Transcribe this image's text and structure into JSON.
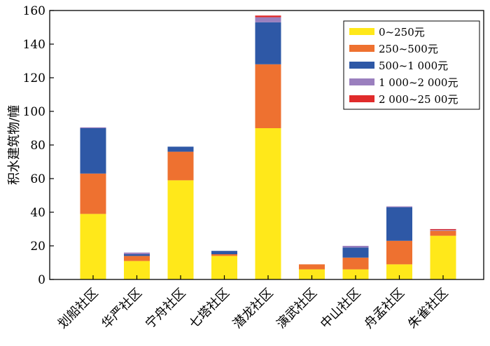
{
  "chart_data": {
    "type": "bar",
    "stacked": true,
    "title": "",
    "xlabel": "",
    "ylabel": "积水建筑物/幢",
    "ylim": [
      0,
      160
    ],
    "yticks": [
      0,
      20,
      40,
      60,
      80,
      100,
      120,
      140,
      160
    ],
    "legend_position": "top-right",
    "categories": [
      "划船社区",
      "华严社区",
      "宁舟社区",
      "七塔社区",
      "潜龙社区",
      "演武社区",
      "中山社区",
      "舟孟社区",
      "朱雀社区"
    ],
    "series": [
      {
        "name": "0~250元",
        "color": "#ffe81a",
        "values": [
          39,
          11,
          59,
          14,
          90,
          6,
          6,
          9,
          26
        ]
      },
      {
        "name": "250~500元",
        "color": "#ee7130",
        "values": [
          24,
          3,
          17,
          1,
          38,
          3,
          7,
          14,
          3
        ]
      },
      {
        "name": "500~1 000元",
        "color": "#2e58a6",
        "values": [
          27,
          1,
          3,
          2,
          25,
          0,
          6,
          20,
          0
        ]
      },
      {
        "name": "1 000~2 000元",
        "color": "#9a7fbe",
        "values": [
          0.5,
          1,
          0,
          0,
          3,
          0,
          1,
          0.5,
          0.5
        ]
      },
      {
        "name": "2 000~25 00元",
        "color": "#e02b2b",
        "values": [
          0,
          0,
          0,
          0,
          1,
          0,
          0,
          0,
          0.5
        ]
      }
    ]
  }
}
